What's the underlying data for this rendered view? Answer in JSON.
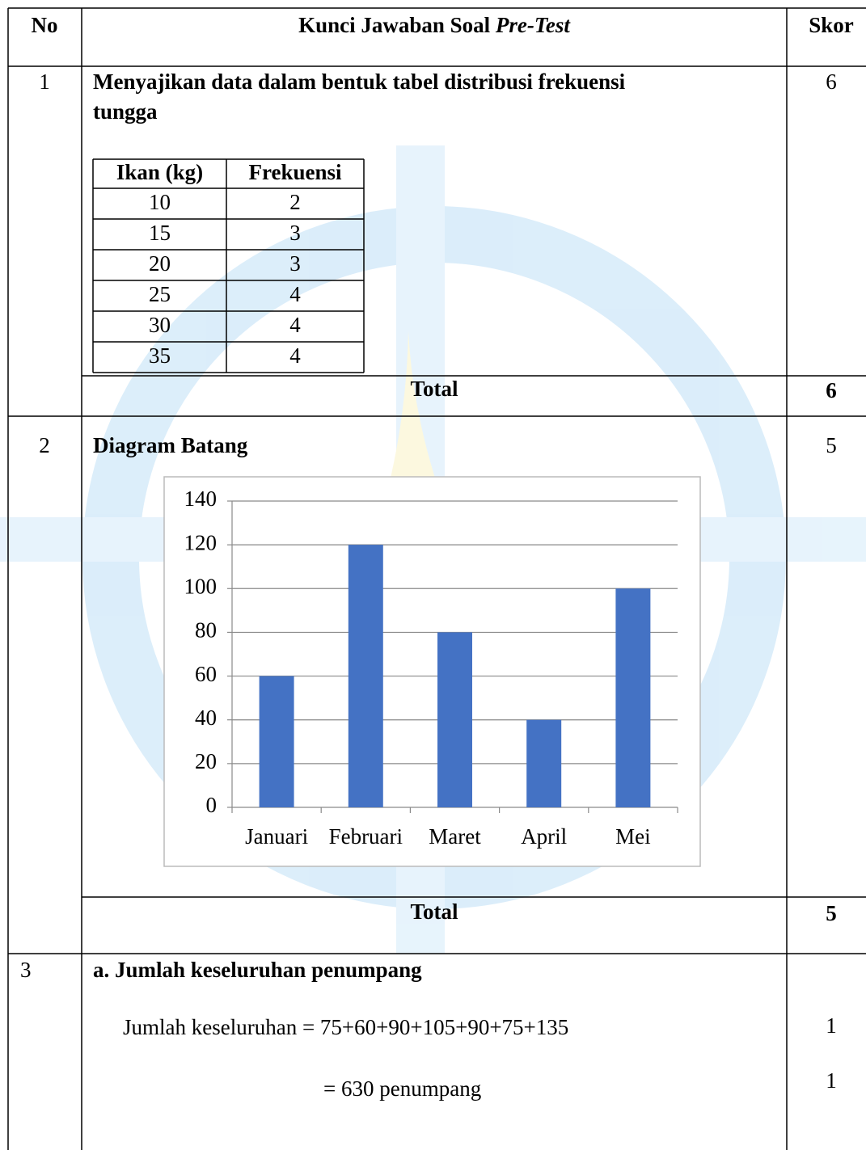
{
  "table": {
    "header": {
      "no": "No",
      "title": "Kunci Jawaban Soal",
      "title_italic": "Pre-Test",
      "score": "Skor"
    },
    "row1": {
      "no": "1",
      "lines": [
        "Menyajikan data dalam bentuk tabel distribusi frekuensi",
        "tungga"
      ],
      "score": "6",
      "inner_table": {
        "header": [
          "Ikan (kg)",
          "Frekuensi"
        ],
        "rows": [
          [
            10,
            2
          ],
          [
            15,
            3
          ],
          [
            20,
            3
          ],
          [
            25,
            4
          ],
          [
            30,
            4
          ],
          [
            35,
            4
          ]
        ]
      },
      "total_label": "Total",
      "total": "6"
    },
    "row2": {
      "no": "2",
      "heading": "Diagram Batang",
      "score": "5",
      "total_label": "Total",
      "total": "5"
    },
    "row3": {
      "no": "3",
      "heading": "a. Jumlah keseluruhan penumpang",
      "line1": "Jumlah keseluruhan = 75+60+90+105+90+75+135",
      "score1": "1",
      "line2": "= 630 penumpang",
      "score2": "1"
    }
  },
  "chart_data": {
    "type": "bar",
    "categories": [
      "Januari",
      "Februari",
      "Maret",
      "April",
      "Mei"
    ],
    "values": [
      60,
      120,
      80,
      40,
      100
    ],
    "color": "#4472c4",
    "ylim": [
      0,
      140
    ],
    "yticks": [
      0,
      20,
      40,
      60,
      80,
      100,
      120,
      140
    ],
    "grid": true
  }
}
